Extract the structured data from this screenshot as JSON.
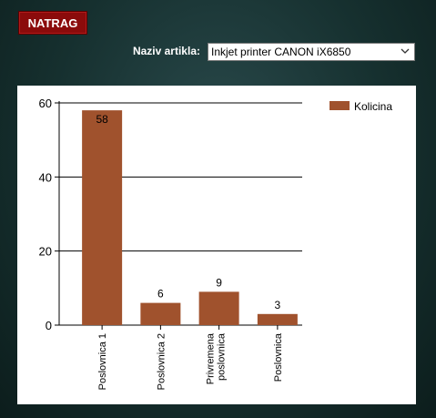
{
  "toolbar": {
    "back_label": "NATRAG"
  },
  "filter": {
    "label": "Naziv artikla:",
    "selected": "Inkjet printer CANON iX6850"
  },
  "colors": {
    "bar": "#a0522d",
    "button": "#8b0b0b"
  },
  "chart_data": {
    "type": "bar",
    "categories": [
      [
        "Poslovnica 1"
      ],
      [
        "Poslovnica 2"
      ],
      [
        "Privremena",
        "poslovnica"
      ],
      [
        "Poslovnica"
      ]
    ],
    "series": [
      {
        "name": "Kolicina",
        "values": [
          58,
          6,
          9,
          3
        ]
      }
    ],
    "ylim": [
      0,
      60
    ],
    "yticks": [
      0,
      20,
      40,
      60
    ],
    "grid": true,
    "legend_position": "top-right",
    "data_labels": true
  }
}
